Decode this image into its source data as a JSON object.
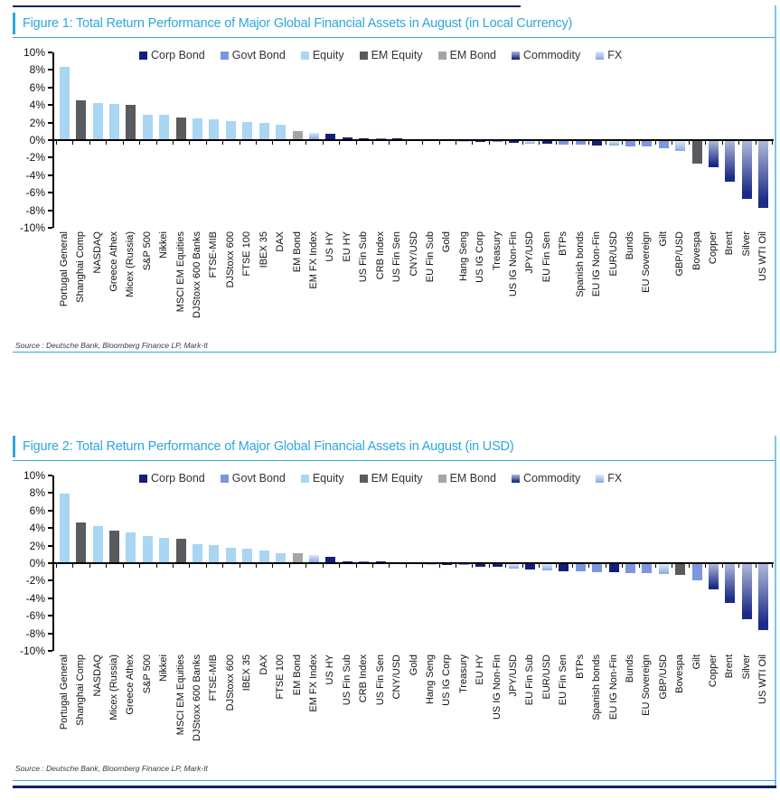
{
  "figures": [
    {
      "title": "Figure 1: Total Return Performance of Major Global Financial Assets in August (in Local Currency)",
      "source": "Source : Deutsche Bank, Bloomberg Finance LP, Mark-It"
    },
    {
      "title": "Figure 2: Total Return Performance of Major Global Financial Assets in August (in USD)",
      "source": "Source : Deutsche Bank, Bloomberg Finance LP, Mark-It"
    }
  ],
  "legend": [
    {
      "label": "Corp Bond",
      "key": "corp_bond"
    },
    {
      "label": "Govt Bond",
      "key": "govt_bond"
    },
    {
      "label": "Equity",
      "key": "equity"
    },
    {
      "label": "EM Equity",
      "key": "em_equity"
    },
    {
      "label": "EM Bond",
      "key": "em_bond"
    },
    {
      "label": "Commodity",
      "key": "commodity"
    },
    {
      "label": "FX",
      "key": "fx"
    }
  ],
  "colors": {
    "corp_bond": "#131f7b",
    "govt_bond": "#7c97dd",
    "equity": "#a9d6f2",
    "em_equity": "#595b5e",
    "em_bond": "#a2a5a9",
    "commodity_gradient": [
      "#aeb9da",
      "#1b2a86"
    ],
    "fx_gradient": [
      "#dde8f6",
      "#8cabe3"
    ],
    "title_accent": "#2ea7da",
    "rule_navy": "#0c2068",
    "axis": "#000000"
  },
  "chart_data": [
    {
      "type": "bar",
      "title": "Figure 1: Total Return Performance of Major Global Financial Assets in August (in Local Currency)",
      "unit": "%",
      "ylim": [
        -10,
        10
      ],
      "ytick_labels": [
        "10%",
        "8%",
        "6%",
        "4%",
        "2%",
        "0%",
        "-2%",
        "-4%",
        "-6%",
        "-8%",
        "-10%"
      ],
      "grid": false,
      "legend_position": "top",
      "categories": [
        "Portugal General",
        "Shanghai Comp",
        "NASDAQ",
        "Greece Athex",
        "Micex (Russia)",
        "S&P 500",
        "Nikkei",
        "MSCI EM Equities",
        "DJStoxx 600 Banks",
        "FTSE-MIB",
        "DJStoxx 600",
        "FTSE 100",
        "IBEX 35",
        "DAX",
        "EM Bond",
        "EM FX Index",
        "US HY",
        "EU HY",
        "US Fin Sub",
        "CRB Index",
        "US Fin Sen",
        "CNY/USD",
        "EU Fin Sub",
        "Gold",
        "Hang Seng",
        "US IG Corp",
        "Treasury",
        "US IG Non-Fin",
        "JPY/USD",
        "EU Fin Sen",
        "BTPs",
        "Spanish bonds",
        "EU IG Non-Fin",
        "EUR/USD",
        "Bunds",
        "EU Sovereign",
        "Gilt",
        "GBP/USD",
        "Bovespa",
        "Copper",
        "Brent",
        "Silver",
        "US WTI Oil"
      ],
      "values": [
        8.2,
        4.4,
        4.1,
        4.0,
        3.9,
        2.8,
        2.8,
        2.5,
        2.35,
        2.3,
        2.1,
        2.0,
        1.9,
        1.7,
        0.9,
        0.75,
        0.6,
        0.25,
        0.1,
        0.05,
        0.05,
        0.0,
        0.0,
        0.0,
        -0.05,
        -0.1,
        -0.15,
        -0.25,
        -0.3,
        -0.35,
        -0.4,
        -0.45,
        -0.5,
        -0.55,
        -0.6,
        -0.65,
        -0.8,
        -1.1,
        -2.6,
        -3.0,
        -4.6,
        -6.6,
        -7.6
      ],
      "series_class": [
        "equity",
        "em_equity",
        "equity",
        "equity",
        "em_equity",
        "equity",
        "equity",
        "em_equity",
        "equity",
        "equity",
        "equity",
        "equity",
        "equity",
        "equity",
        "em_bond",
        "fx",
        "corp_bond",
        "corp_bond",
        "corp_bond",
        "commodity",
        "corp_bond",
        "fx",
        "corp_bond",
        "commodity",
        "equity",
        "corp_bond",
        "govt_bond",
        "corp_bond",
        "fx",
        "corp_bond",
        "govt_bond",
        "govt_bond",
        "corp_bond",
        "fx",
        "govt_bond",
        "govt_bond",
        "govt_bond",
        "fx",
        "em_equity",
        "commodity",
        "commodity",
        "commodity",
        "commodity"
      ]
    },
    {
      "type": "bar",
      "title": "Figure 2: Total Return Performance of Major Global Financial Assets in August (in USD)",
      "unit": "%",
      "ylim": [
        -10,
        10
      ],
      "ytick_labels": [
        "10%",
        "8%",
        "6%",
        "4%",
        "2%",
        "0%",
        "-2%",
        "-4%",
        "-6%",
        "-8%",
        "-10%"
      ],
      "grid": false,
      "legend_position": "top",
      "categories": [
        "Portugal General",
        "Shanghai Comp",
        "NASDAQ",
        "Micex (Russia)",
        "Greece Athex",
        "S&P 500",
        "Nikkei",
        "MSCI EM Equities",
        "DJStoxx 600 Banks",
        "FTSE-MIB",
        "DJStoxx 600",
        "IBEX 35",
        "DAX",
        "FTSE 100",
        "EM Bond",
        "EM FX Index",
        "US HY",
        "US Fin Sub",
        "CRB Index",
        "US Fin Sen",
        "CNY/USD",
        "Gold",
        "Hang Seng",
        "US IG Corp",
        "Treasury",
        "EU HY",
        "US IG Non-Fin",
        "JPY/USD",
        "EU Fin Sub",
        "EUR/USD",
        "EU Fin Sen",
        "BTPs",
        "Spanish bonds",
        "EU IG Non-Fin",
        "Bunds",
        "EU Sovereign",
        "GBP/USD",
        "Bovespa",
        "Gilt",
        "Copper",
        "Brent",
        "Silver",
        "US WTI Oil"
      ],
      "values": [
        7.8,
        4.5,
        4.1,
        3.6,
        3.4,
        3.0,
        2.8,
        2.7,
        2.1,
        2.0,
        1.7,
        1.5,
        1.3,
        1.0,
        1.0,
        0.8,
        0.6,
        0.1,
        0.05,
        0.05,
        0.0,
        0.0,
        -0.05,
        -0.1,
        -0.15,
        -0.3,
        -0.35,
        -0.5,
        -0.65,
        -0.75,
        -0.8,
        -0.85,
        -0.9,
        -0.95,
        -1.0,
        -1.05,
        -1.15,
        -1.2,
        -1.9,
        -2.9,
        -4.4,
        -6.3,
        -7.5
      ],
      "series_class": [
        "equity",
        "em_equity",
        "equity",
        "em_equity",
        "equity",
        "equity",
        "equity",
        "em_equity",
        "equity",
        "equity",
        "equity",
        "equity",
        "equity",
        "equity",
        "em_bond",
        "fx",
        "corp_bond",
        "corp_bond",
        "commodity",
        "corp_bond",
        "fx",
        "commodity",
        "equity",
        "corp_bond",
        "govt_bond",
        "corp_bond",
        "corp_bond",
        "fx",
        "corp_bond",
        "fx",
        "corp_bond",
        "govt_bond",
        "govt_bond",
        "corp_bond",
        "govt_bond",
        "govt_bond",
        "fx",
        "em_equity",
        "govt_bond",
        "commodity",
        "commodity",
        "commodity",
        "commodity"
      ]
    }
  ]
}
